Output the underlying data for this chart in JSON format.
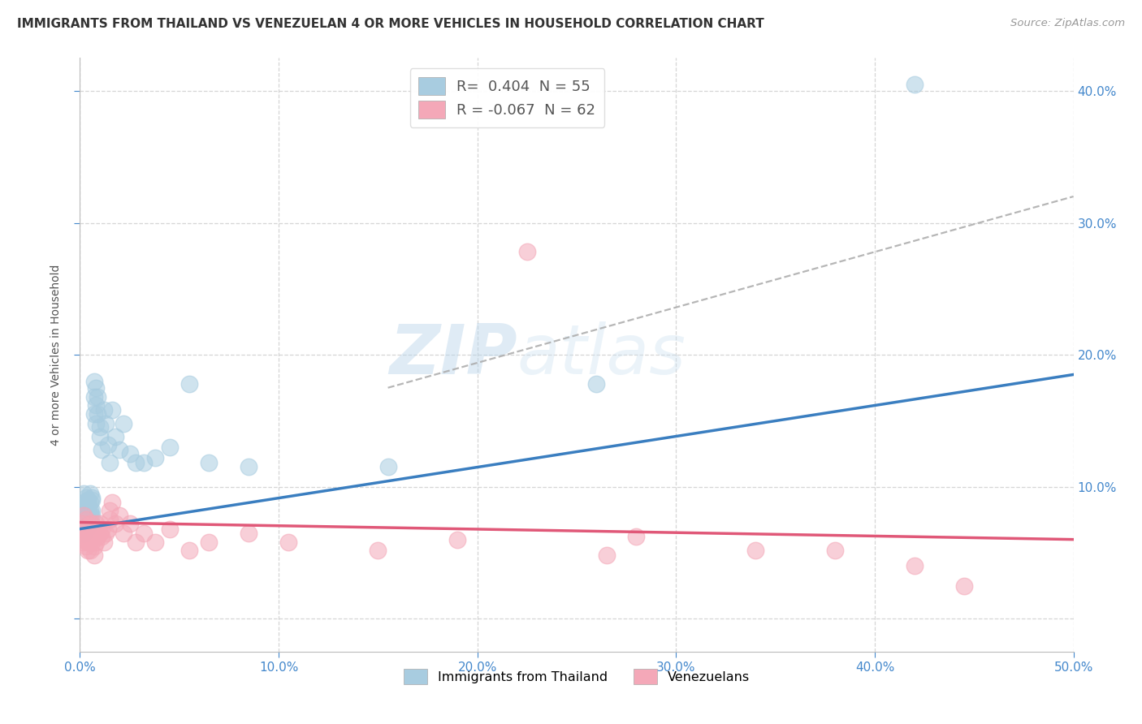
{
  "title": "IMMIGRANTS FROM THAILAND VS VENEZUELAN 4 OR MORE VEHICLES IN HOUSEHOLD CORRELATION CHART",
  "source": "Source: ZipAtlas.com",
  "ylabel": "4 or more Vehicles in Household",
  "legend_label1": "Immigrants from Thailand",
  "legend_label2": "Venezuelans",
  "r1": " 0.404",
  "n1": "55",
  "r2": "-0.067",
  "n2": "62",
  "blue_color": "#a8cce0",
  "pink_color": "#f4a8b8",
  "blue_line_color": "#3a7ec0",
  "pink_line_color": "#e05878",
  "dashed_line_color": "#aaaaaa",
  "watermark_zip": "ZIP",
  "watermark_atlas": "atlas",
  "xlim": [
    0.0,
    0.5
  ],
  "ylim": [
    -0.025,
    0.425
  ],
  "blue_line_x0": 0.0,
  "blue_line_y0": 0.068,
  "blue_line_x1": 0.5,
  "blue_line_y1": 0.185,
  "pink_line_x0": 0.0,
  "pink_line_y0": 0.073,
  "pink_line_x1": 0.5,
  "pink_line_y1": 0.06,
  "dash_line_x0": 0.155,
  "dash_line_y0": 0.175,
  "dash_line_x1": 0.5,
  "dash_line_y1": 0.32,
  "blue_scatter_x": [
    0.001,
    0.001,
    0.001,
    0.002,
    0.002,
    0.002,
    0.002,
    0.003,
    0.003,
    0.003,
    0.003,
    0.003,
    0.004,
    0.004,
    0.004,
    0.004,
    0.005,
    0.005,
    0.005,
    0.005,
    0.005,
    0.006,
    0.006,
    0.006,
    0.006,
    0.007,
    0.007,
    0.007,
    0.008,
    0.008,
    0.008,
    0.009,
    0.009,
    0.01,
    0.01,
    0.011,
    0.012,
    0.013,
    0.014,
    0.015,
    0.016,
    0.018,
    0.02,
    0.022,
    0.025,
    0.028,
    0.032,
    0.038,
    0.045,
    0.055,
    0.065,
    0.085,
    0.155,
    0.26,
    0.42
  ],
  "blue_scatter_y": [
    0.075,
    0.082,
    0.068,
    0.095,
    0.088,
    0.078,
    0.065,
    0.092,
    0.078,
    0.085,
    0.072,
    0.068,
    0.09,
    0.082,
    0.075,
    0.088,
    0.095,
    0.088,
    0.078,
    0.072,
    0.082,
    0.09,
    0.082,
    0.078,
    0.092,
    0.18,
    0.168,
    0.155,
    0.175,
    0.162,
    0.148,
    0.168,
    0.155,
    0.145,
    0.138,
    0.128,
    0.158,
    0.148,
    0.132,
    0.118,
    0.158,
    0.138,
    0.128,
    0.148,
    0.125,
    0.118,
    0.118,
    0.122,
    0.13,
    0.178,
    0.118,
    0.115,
    0.115,
    0.178,
    0.405
  ],
  "pink_scatter_x": [
    0.001,
    0.001,
    0.001,
    0.002,
    0.002,
    0.002,
    0.003,
    0.003,
    0.003,
    0.003,
    0.004,
    0.004,
    0.004,
    0.004,
    0.005,
    0.005,
    0.005,
    0.005,
    0.005,
    0.006,
    0.006,
    0.006,
    0.007,
    0.007,
    0.007,
    0.007,
    0.008,
    0.008,
    0.008,
    0.009,
    0.009,
    0.01,
    0.01,
    0.011,
    0.011,
    0.012,
    0.013,
    0.014,
    0.015,
    0.015,
    0.016,
    0.018,
    0.02,
    0.022,
    0.025,
    0.028,
    0.032,
    0.038,
    0.045,
    0.055,
    0.065,
    0.085,
    0.105,
    0.15,
    0.19,
    0.225,
    0.265,
    0.28,
    0.34,
    0.38,
    0.42,
    0.445
  ],
  "pink_scatter_y": [
    0.072,
    0.065,
    0.058,
    0.078,
    0.068,
    0.06,
    0.075,
    0.068,
    0.062,
    0.055,
    0.07,
    0.062,
    0.058,
    0.052,
    0.072,
    0.065,
    0.058,
    0.052,
    0.068,
    0.065,
    0.058,
    0.072,
    0.068,
    0.062,
    0.055,
    0.048,
    0.072,
    0.065,
    0.058,
    0.068,
    0.062,
    0.072,
    0.065,
    0.068,
    0.062,
    0.058,
    0.065,
    0.068,
    0.075,
    0.082,
    0.088,
    0.072,
    0.078,
    0.065,
    0.072,
    0.058,
    0.065,
    0.058,
    0.068,
    0.052,
    0.058,
    0.065,
    0.058,
    0.052,
    0.06,
    0.278,
    0.048,
    0.062,
    0.052,
    0.052,
    0.04,
    0.025
  ]
}
